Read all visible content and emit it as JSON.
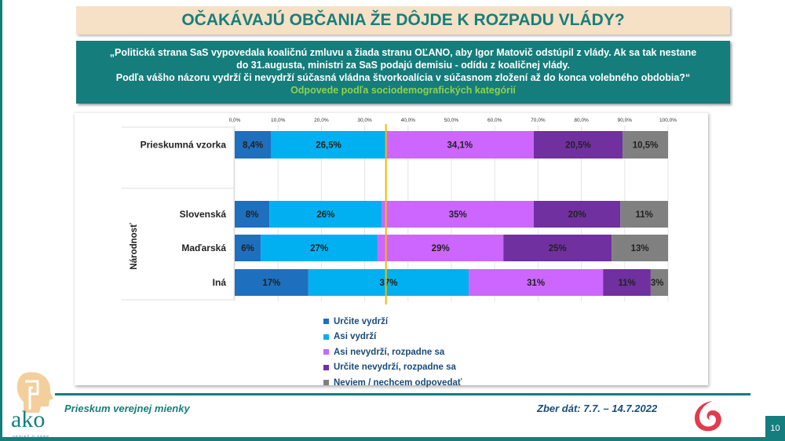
{
  "header": {
    "title": "OČAKÁVAJÚ OBČANIA ŽE DÔJDE K ROZPADU VLÁDY?"
  },
  "question": {
    "line1": "„Politická strana SaS vypovedala koaličnú zmluvu a žiada stranu OĽANO, aby Igor Matovič odstúpil z vlády. Ak sa tak nestane",
    "line2": "do 31.augusta, ministri za SaS podajú demisiu - odídu z koaličnej vlády.",
    "line3": "Podľa vášho názoru vydrží či nevydrží súčasná vládna štvorkoalícia v súčasnom zložení až do konca volebného obdobia?“",
    "subtitle": "Odpovede podľa sociodemografických kategórií"
  },
  "chart_data": {
    "type": "bar",
    "orientation": "horizontal-stacked-100",
    "xlim": [
      0,
      100
    ],
    "x_ticks": [
      "0,0%",
      "10,0%",
      "20,0%",
      "30,0%",
      "40,0%",
      "50,0%",
      "60,0%",
      "70,0%",
      "80,0%",
      "90,0%",
      "100,0%"
    ],
    "grid": true,
    "group_label": "Národnosť",
    "reference_line": {
      "value": 34.9,
      "color": "#f5b800"
    },
    "categories": [
      "Prieskumná vzorka",
      "Slovenská",
      "Maďarská",
      "Iná"
    ],
    "series": [
      {
        "name": "Určite vydrží",
        "color": "#1f6fbf",
        "values": [
          8.4,
          8,
          6,
          17
        ],
        "labels": [
          "8,4%",
          "8%",
          "6%",
          "17%"
        ]
      },
      {
        "name": "Asi vydrží",
        "color": "#00b0f0",
        "values": [
          26.5,
          26,
          27,
          37
        ],
        "labels": [
          "26,5%",
          "26%",
          "27%",
          "37%"
        ]
      },
      {
        "name": "Asi nevydrží, rozpadne sa",
        "color": "#cc66ff",
        "values": [
          34.1,
          35,
          29,
          31
        ],
        "labels": [
          "34,1%",
          "35%",
          "29%",
          "31%"
        ]
      },
      {
        "name": "Určite nevydrží, rozpadne sa",
        "color": "#7030a0",
        "values": [
          20.5,
          20,
          25,
          11
        ],
        "labels": [
          "20,5%",
          "20%",
          "25%",
          "11%"
        ]
      },
      {
        "name": "Neviem / nechcem odpovedať",
        "color": "#808080",
        "values": [
          10.5,
          11,
          13,
          3
        ],
        "labels": [
          "10,5%",
          "11%",
          "13%",
          "3%"
        ]
      }
    ],
    "legend_position": "bottom"
  },
  "footer": {
    "left": "Prieskum verejnej mienky",
    "right": "Zber dát: 7.7. – 14.7.2022",
    "page": "10",
    "logo_text": "ako",
    "logo_tagline": "VEDIEŤ O SEBE"
  }
}
